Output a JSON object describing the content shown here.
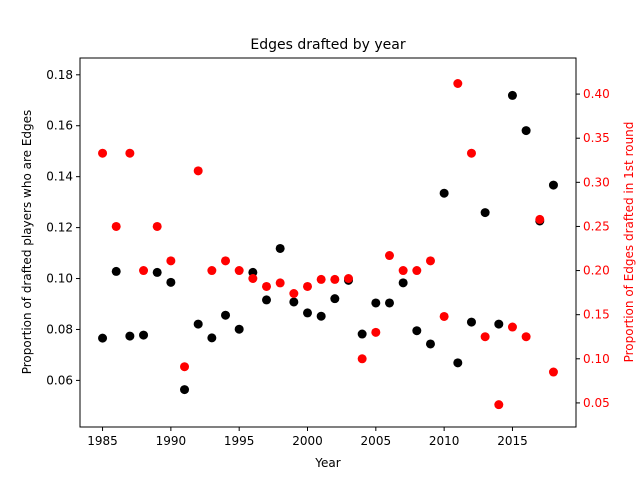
{
  "chart_data": {
    "type": "scatter",
    "title": "Edges drafted by year",
    "xlabel": "Year",
    "ylabel_left": "Proportion of drafted players who are Edges",
    "ylabel_right": "Proportion of Edges drafted in 1st round",
    "xlim": [
      1983.35,
      2019.65
    ],
    "ylim_left": [
      0.0417,
      0.1866
    ],
    "ylim_right": [
      0.0227,
      0.4409
    ],
    "x_ticks": [
      1985,
      1990,
      1995,
      2000,
      2005,
      2010,
      2015
    ],
    "y_ticks_left": [
      0.06,
      0.08,
      0.1,
      0.12,
      0.14,
      0.16,
      0.18
    ],
    "y_ticks_right": [
      0.05,
      0.1,
      0.15,
      0.2,
      0.25,
      0.3,
      0.35,
      0.4
    ],
    "x_tick_labels": [
      "1985",
      "1990",
      "1995",
      "2000",
      "2005",
      "2010",
      "2015"
    ],
    "y_tick_labels_left": [
      "0.06",
      "0.08",
      "0.10",
      "0.12",
      "0.14",
      "0.16",
      "0.18"
    ],
    "y_tick_labels_right": [
      "0.05",
      "0.10",
      "0.15",
      "0.20",
      "0.25",
      "0.30",
      "0.35",
      "0.40"
    ],
    "grid": false,
    "series": [
      {
        "axis": "left",
        "color": "#000000",
        "x": [
          1985,
          1986,
          1987,
          1988,
          1989,
          1990,
          1991,
          1992,
          1993,
          1994,
          1995,
          1996,
          1997,
          1998,
          1999,
          2000,
          2001,
          2002,
          2003,
          2004,
          2005,
          2006,
          2007,
          2008,
          2009,
          2010,
          2011,
          2012,
          2013,
          2014,
          2015,
          2016,
          2017,
          2018
        ],
        "y": [
          0.0766,
          0.1028,
          0.0774,
          0.0778,
          0.1024,
          0.0985,
          0.0564,
          0.0821,
          0.0767,
          0.0856,
          0.0801,
          0.1024,
          0.0916,
          0.1118,
          0.0908,
          0.0865,
          0.0852,
          0.0921,
          0.0993,
          0.0782,
          0.0904,
          0.0904,
          0.0983,
          0.0795,
          0.0743,
          0.1335,
          0.0669,
          0.0829,
          0.1259,
          0.0821,
          0.1719,
          0.1581,
          0.1226,
          0.1367
        ]
      },
      {
        "axis": "right",
        "color": "#ff0000",
        "x": [
          1985,
          1986,
          1987,
          1988,
          1989,
          1990,
          1991,
          1992,
          1993,
          1994,
          1995,
          1996,
          1997,
          1998,
          1999,
          2000,
          2001,
          2002,
          2003,
          2004,
          2005,
          2006,
          2007,
          2008,
          2009,
          2010,
          2011,
          2012,
          2013,
          2014,
          2015,
          2016,
          2017,
          2018
        ],
        "y": [
          0.333,
          0.25,
          0.333,
          0.2,
          0.25,
          0.211,
          0.091,
          0.313,
          0.2,
          0.211,
          0.2,
          0.191,
          0.182,
          0.186,
          0.174,
          0.182,
          0.19,
          0.19,
          0.191,
          0.1,
          0.13,
          0.217,
          0.2,
          0.2,
          0.211,
          0.148,
          0.412,
          0.333,
          0.125,
          0.048,
          0.136,
          0.125,
          0.258,
          0.085
        ]
      }
    ]
  }
}
